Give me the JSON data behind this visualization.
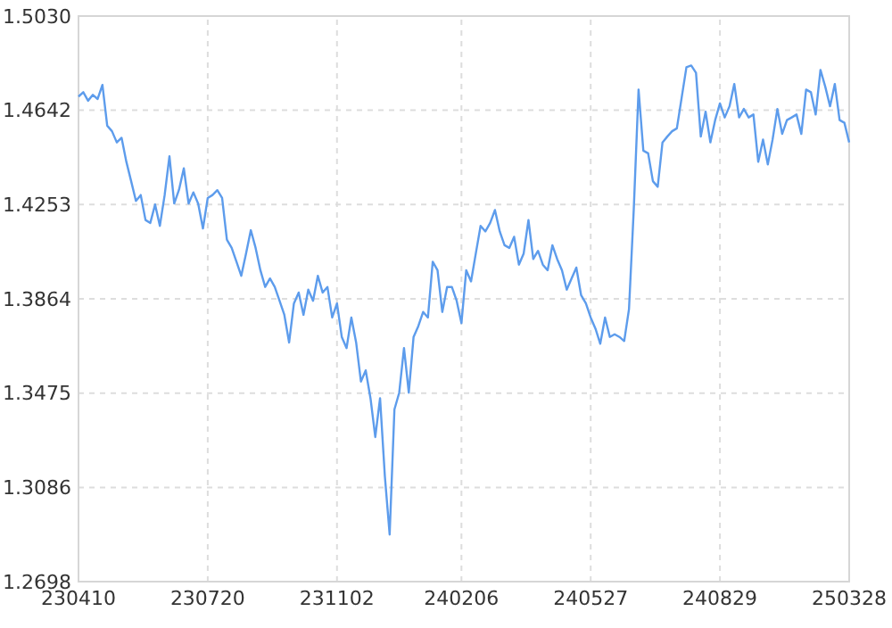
{
  "chart_data": {
    "type": "line",
    "categories": [
      "230410",
      null,
      null,
      null,
      null,
      null,
      null,
      null,
      null,
      null,
      null,
      null,
      null,
      null,
      null,
      null,
      null,
      null,
      null,
      null,
      null,
      null,
      null,
      null,
      null,
      null,
      null,
      "230720",
      null,
      null,
      null,
      null,
      null,
      null,
      null,
      null,
      null,
      null,
      null,
      null,
      null,
      null,
      null,
      null,
      null,
      null,
      null,
      null,
      null,
      null,
      null,
      null,
      null,
      null,
      "231102",
      null,
      null,
      null,
      null,
      null,
      null,
      null,
      null,
      null,
      null,
      null,
      null,
      null,
      null,
      null,
      null,
      null,
      null,
      null,
      null,
      null,
      null,
      null,
      null,
      null,
      "240206",
      null,
      null,
      null,
      null,
      null,
      null,
      null,
      null,
      null,
      null,
      null,
      null,
      null,
      null,
      null,
      null,
      null,
      null,
      null,
      null,
      null,
      null,
      null,
      null,
      null,
      null,
      "240527",
      null,
      null,
      null,
      null,
      null,
      null,
      null,
      null,
      null,
      null,
      null,
      null,
      null,
      null,
      null,
      null,
      null,
      null,
      null,
      null,
      null,
      null,
      null,
      null,
      null,
      null,
      "240829",
      null,
      null,
      null,
      null,
      null,
      null,
      null,
      null,
      null,
      null,
      null,
      null,
      null,
      null,
      null,
      null,
      null,
      null,
      null,
      null,
      null,
      null,
      null,
      null,
      null,
      null,
      "250328"
    ],
    "ylim": [
      1.2698,
      1.503
    ],
    "yticks": [
      {
        "value": 1.2698,
        "label": "1.2698"
      },
      {
        "value": 1.3086,
        "label": "1.3086"
      },
      {
        "value": 1.3475,
        "label": "1.3475"
      },
      {
        "value": 1.3864,
        "label": "1.3864"
      },
      {
        "value": 1.4253,
        "label": "1.4253"
      },
      {
        "value": 1.4642,
        "label": "1.4642"
      },
      {
        "value": 1.503,
        "label": "1.5030"
      }
    ],
    "grid": true,
    "marker": "none",
    "line_style": "solid",
    "series": [
      {
        "color": "#5d9cec",
        "values": [
          1.4698,
          1.4716,
          1.4681,
          1.4705,
          1.4688,
          1.4746,
          1.4578,
          1.4555,
          1.4509,
          1.4528,
          1.4429,
          1.4349,
          1.4268,
          1.4292,
          1.4189,
          1.4177,
          1.4253,
          1.4165,
          1.4292,
          1.4452,
          1.4257,
          1.4314,
          1.4402,
          1.4257,
          1.4303,
          1.4257,
          1.4154,
          1.428,
          1.4292,
          1.4312,
          1.428,
          1.4108,
          1.4074,
          1.4017,
          1.3959,
          1.4051,
          1.4147,
          1.4074,
          1.3982,
          1.3913,
          1.3948,
          1.3913,
          1.3856,
          1.3798,
          1.3684,
          1.3845,
          1.389,
          1.3798,
          1.3902,
          1.3856,
          1.3959,
          1.389,
          1.3913,
          1.3787,
          1.3845,
          1.3707,
          1.3661,
          1.3787,
          1.3684,
          1.3523,
          1.3569,
          1.3454,
          1.3294,
          1.3454,
          1.3133,
          1.2892,
          1.3408,
          1.3477,
          1.3661,
          1.3477,
          1.3707,
          1.3752,
          1.381,
          1.3787,
          1.4017,
          1.3982,
          1.381,
          1.3913,
          1.3913,
          1.3856,
          1.3764,
          1.3982,
          1.3936,
          1.4051,
          1.4165,
          1.4142,
          1.4177,
          1.423,
          1.4142,
          1.4085,
          1.4074,
          1.412,
          1.4005,
          1.4051,
          1.4189,
          1.4028,
          1.4062,
          1.4005,
          1.3982,
          1.4085,
          1.4028,
          1.3982,
          1.3902,
          1.3948,
          1.3993,
          1.3879,
          1.3845,
          1.3787,
          1.3741,
          1.3679,
          1.3787,
          1.3707,
          1.3718,
          1.3707,
          1.369,
          1.3821,
          1.4234,
          1.4727,
          1.4475,
          1.4464,
          1.4349,
          1.4326,
          1.4509,
          1.4533,
          1.4555,
          1.4567,
          1.4693,
          1.4819,
          1.4826,
          1.4796,
          1.4533,
          1.4636,
          1.4509,
          1.4601,
          1.467,
          1.4612,
          1.4658,
          1.475,
          1.4612,
          1.4647,
          1.4612,
          1.4624,
          1.4429,
          1.4521,
          1.4418,
          1.4521,
          1.4647,
          1.4544,
          1.4601,
          1.4612,
          1.4624,
          1.4544,
          1.4727,
          1.4716,
          1.4624,
          1.4808,
          1.4739,
          1.4658,
          1.475,
          1.4601,
          1.459,
          1.4509
        ]
      }
    ]
  }
}
